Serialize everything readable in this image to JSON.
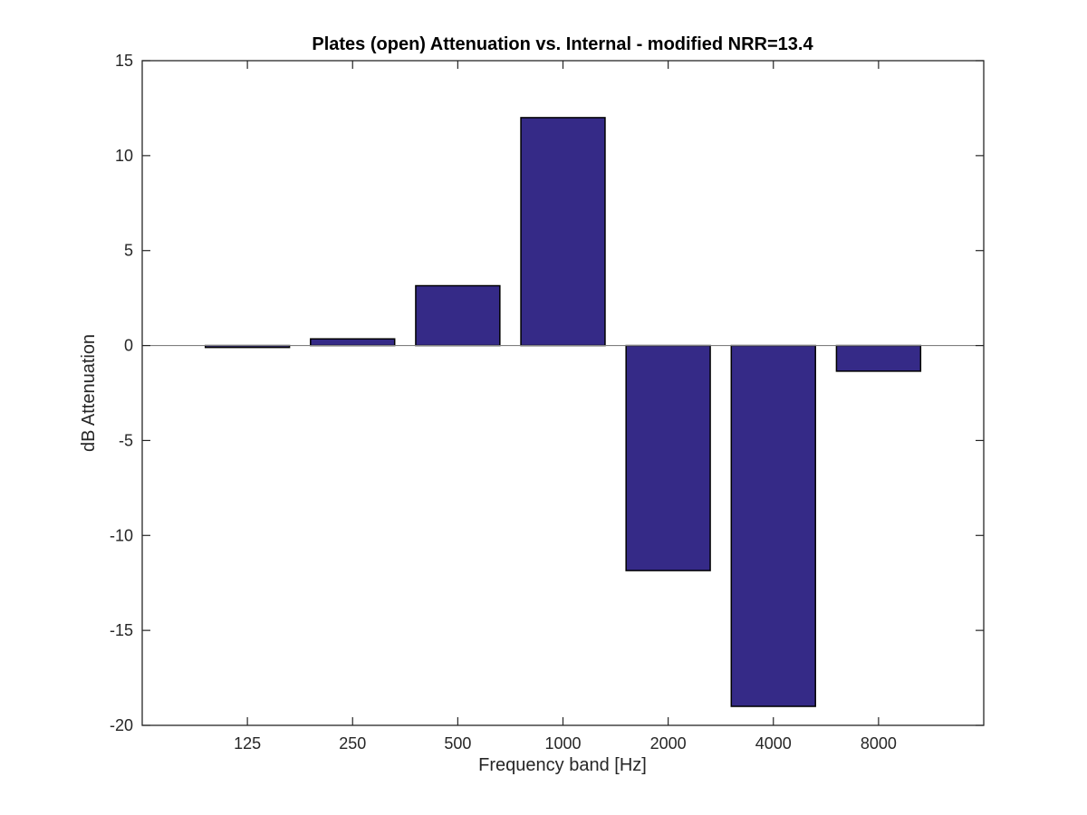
{
  "chart_data": {
    "type": "bar",
    "title": "Plates (open) Attenuation vs. Internal - modified NRR=13.4",
    "xlabel": "Frequency band [Hz]",
    "ylabel": "dB Attenuation",
    "categories": [
      "125",
      "250",
      "500",
      "1000",
      "2000",
      "4000",
      "8000"
    ],
    "values": [
      -0.1,
      0.35,
      3.15,
      12.0,
      -11.85,
      -19.0,
      -1.35
    ],
    "ylim": [
      -20,
      15
    ],
    "yticks": [
      15,
      10,
      5,
      0,
      -5,
      -10,
      -15,
      -20
    ],
    "ytick_labels": [
      "15",
      "10",
      "5",
      "0",
      "-5",
      "-10",
      "-15",
      "-20"
    ],
    "grid": false,
    "bar_color": "#352a87",
    "bar_edge_color": "#000000",
    "zero_line_color": "#808080"
  }
}
